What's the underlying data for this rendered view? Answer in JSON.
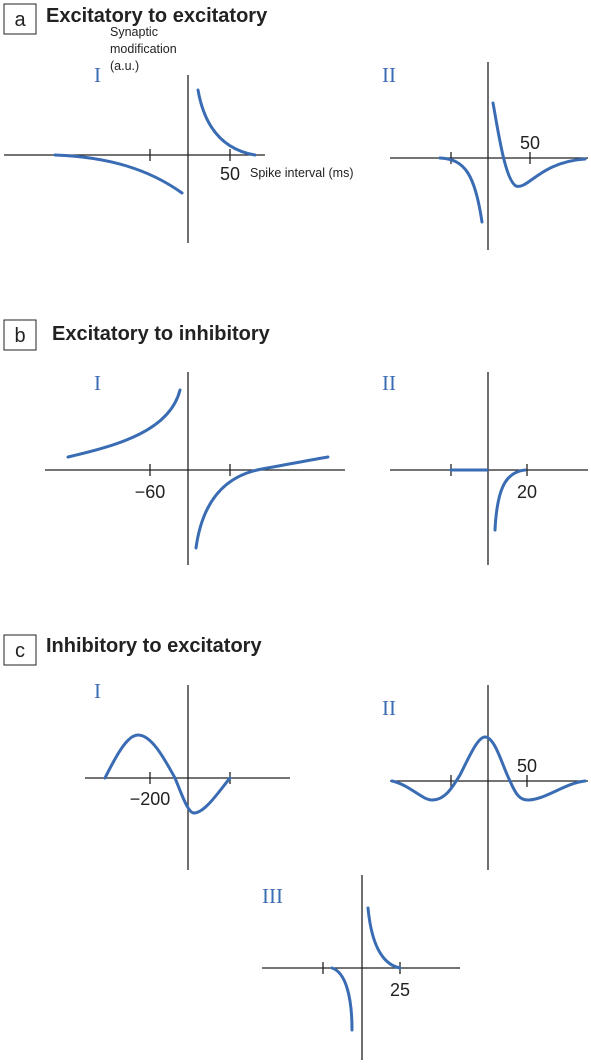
{
  "panels": [
    {
      "label": "a",
      "title": "Excitatory to excitatory",
      "plots": [
        {
          "numeral": "I",
          "tick_label": "50",
          "y_axis_label": [
            "Synaptic",
            "modification",
            "(a.u.)"
          ],
          "x_axis_label": "Spike interval (ms)"
        },
        {
          "numeral": "II",
          "tick_label": "50"
        }
      ]
    },
    {
      "label": "b",
      "title": "Excitatory to inhibitory",
      "plots": [
        {
          "numeral": "I",
          "tick_label": "−60"
        },
        {
          "numeral": "II",
          "tick_label": "20"
        }
      ]
    },
    {
      "label": "c",
      "title": "Inhibitory to excitatory",
      "plots": [
        {
          "numeral": "I",
          "tick_label": "−200"
        },
        {
          "numeral": "II",
          "tick_label": "50"
        },
        {
          "numeral": "III",
          "tick_label": "25"
        }
      ]
    }
  ]
}
